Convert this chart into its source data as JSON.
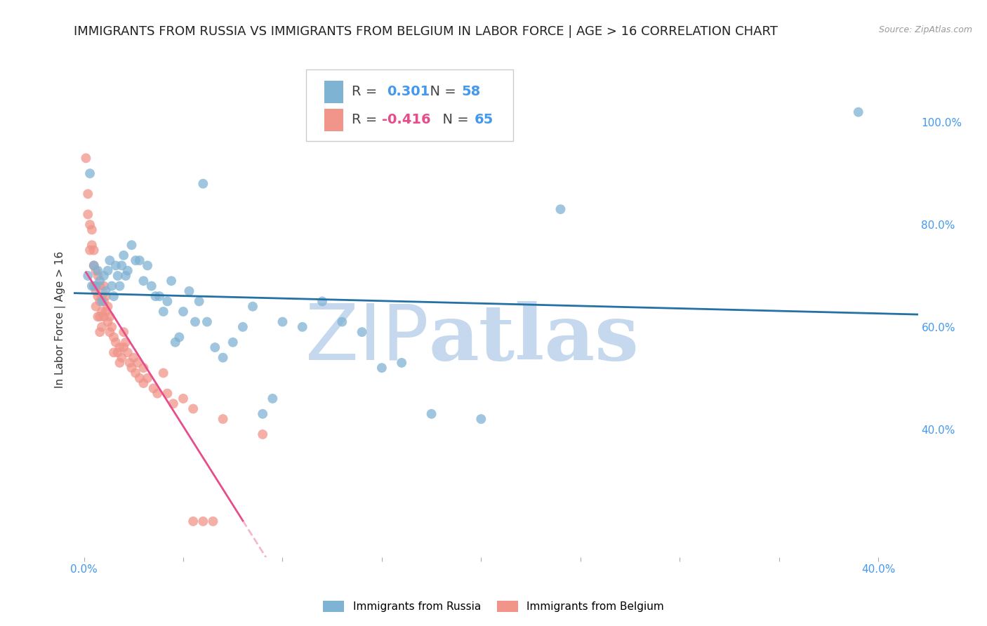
{
  "title": "IMMIGRANTS FROM RUSSIA VS IMMIGRANTS FROM BELGIUM IN LABOR FORCE | AGE > 16 CORRELATION CHART",
  "source": "Source: ZipAtlas.com",
  "ylabel": "In Labor Force | Age > 16",
  "right_yticklabels": [
    "40.0%",
    "60.0%",
    "80.0%",
    "100.0%"
  ],
  "right_ytick_vals": [
    0.4,
    0.6,
    0.8,
    1.0
  ],
  "xlim": [
    -0.005,
    0.42
  ],
  "ylim": [
    0.15,
    1.08
  ],
  "russia_color": "#7FB3D3",
  "belgium_color": "#F1948A",
  "russia_line_color": "#2471A3",
  "belgium_line_color": "#E74C8B",
  "russia_R": 0.301,
  "russia_N": 58,
  "belgium_R": -0.416,
  "belgium_N": 65,
  "russia_scatter": [
    [
      0.002,
      0.7
    ],
    [
      0.003,
      0.9
    ],
    [
      0.004,
      0.68
    ],
    [
      0.005,
      0.72
    ],
    [
      0.006,
      0.68
    ],
    [
      0.007,
      0.71
    ],
    [
      0.008,
      0.69
    ],
    [
      0.009,
      0.65
    ],
    [
      0.01,
      0.7
    ],
    [
      0.011,
      0.67
    ],
    [
      0.012,
      0.71
    ],
    [
      0.013,
      0.73
    ],
    [
      0.014,
      0.68
    ],
    [
      0.015,
      0.66
    ],
    [
      0.016,
      0.72
    ],
    [
      0.017,
      0.7
    ],
    [
      0.018,
      0.68
    ],
    [
      0.019,
      0.72
    ],
    [
      0.02,
      0.74
    ],
    [
      0.021,
      0.7
    ],
    [
      0.022,
      0.71
    ],
    [
      0.024,
      0.76
    ],
    [
      0.026,
      0.73
    ],
    [
      0.028,
      0.73
    ],
    [
      0.03,
      0.69
    ],
    [
      0.032,
      0.72
    ],
    [
      0.034,
      0.68
    ],
    [
      0.036,
      0.66
    ],
    [
      0.038,
      0.66
    ],
    [
      0.04,
      0.63
    ],
    [
      0.042,
      0.65
    ],
    [
      0.044,
      0.69
    ],
    [
      0.046,
      0.57
    ],
    [
      0.048,
      0.58
    ],
    [
      0.05,
      0.63
    ],
    [
      0.053,
      0.67
    ],
    [
      0.056,
      0.61
    ],
    [
      0.058,
      0.65
    ],
    [
      0.06,
      0.88
    ],
    [
      0.062,
      0.61
    ],
    [
      0.066,
      0.56
    ],
    [
      0.07,
      0.54
    ],
    [
      0.075,
      0.57
    ],
    [
      0.08,
      0.6
    ],
    [
      0.085,
      0.64
    ],
    [
      0.09,
      0.43
    ],
    [
      0.095,
      0.46
    ],
    [
      0.1,
      0.61
    ],
    [
      0.11,
      0.6
    ],
    [
      0.12,
      0.65
    ],
    [
      0.13,
      0.61
    ],
    [
      0.14,
      0.59
    ],
    [
      0.15,
      0.52
    ],
    [
      0.16,
      0.53
    ],
    [
      0.175,
      0.43
    ],
    [
      0.2,
      0.42
    ],
    [
      0.24,
      0.83
    ],
    [
      0.39,
      1.02
    ]
  ],
  "belgium_scatter": [
    [
      0.001,
      0.93
    ],
    [
      0.002,
      0.86
    ],
    [
      0.002,
      0.82
    ],
    [
      0.003,
      0.8
    ],
    [
      0.003,
      0.75
    ],
    [
      0.004,
      0.79
    ],
    [
      0.004,
      0.76
    ],
    [
      0.005,
      0.72
    ],
    [
      0.005,
      0.75
    ],
    [
      0.005,
      0.68
    ],
    [
      0.006,
      0.71
    ],
    [
      0.006,
      0.67
    ],
    [
      0.006,
      0.64
    ],
    [
      0.007,
      0.7
    ],
    [
      0.007,
      0.66
    ],
    [
      0.007,
      0.62
    ],
    [
      0.008,
      0.68
    ],
    [
      0.008,
      0.65
    ],
    [
      0.008,
      0.62
    ],
    [
      0.008,
      0.59
    ],
    [
      0.009,
      0.66
    ],
    [
      0.009,
      0.63
    ],
    [
      0.009,
      0.6
    ],
    [
      0.01,
      0.68
    ],
    [
      0.01,
      0.65
    ],
    [
      0.01,
      0.62
    ],
    [
      0.011,
      0.66
    ],
    [
      0.011,
      0.63
    ],
    [
      0.012,
      0.64
    ],
    [
      0.012,
      0.61
    ],
    [
      0.013,
      0.62
    ],
    [
      0.013,
      0.59
    ],
    [
      0.014,
      0.6
    ],
    [
      0.015,
      0.58
    ],
    [
      0.015,
      0.55
    ],
    [
      0.016,
      0.57
    ],
    [
      0.017,
      0.55
    ],
    [
      0.018,
      0.56
    ],
    [
      0.018,
      0.53
    ],
    [
      0.019,
      0.54
    ],
    [
      0.02,
      0.59
    ],
    [
      0.02,
      0.56
    ],
    [
      0.021,
      0.57
    ],
    [
      0.022,
      0.55
    ],
    [
      0.023,
      0.53
    ],
    [
      0.024,
      0.52
    ],
    [
      0.025,
      0.54
    ],
    [
      0.026,
      0.51
    ],
    [
      0.027,
      0.53
    ],
    [
      0.028,
      0.5
    ],
    [
      0.03,
      0.52
    ],
    [
      0.03,
      0.49
    ],
    [
      0.032,
      0.5
    ],
    [
      0.035,
      0.48
    ],
    [
      0.037,
      0.47
    ],
    [
      0.04,
      0.51
    ],
    [
      0.042,
      0.47
    ],
    [
      0.045,
      0.45
    ],
    [
      0.05,
      0.46
    ],
    [
      0.055,
      0.44
    ],
    [
      0.06,
      0.22
    ],
    [
      0.065,
      0.22
    ],
    [
      0.07,
      0.42
    ],
    [
      0.09,
      0.39
    ],
    [
      0.055,
      0.22
    ]
  ],
  "watermark_zip": "ZIP",
  "watermark_atlas": "atlas",
  "watermark_color": "#C5D8EE",
  "grid_color": "#DDDDDD",
  "axis_color": "#4499EE",
  "title_fontsize": 13,
  "tick_fontsize": 11,
  "label_fontsize": 11,
  "legend_fontsize": 14
}
